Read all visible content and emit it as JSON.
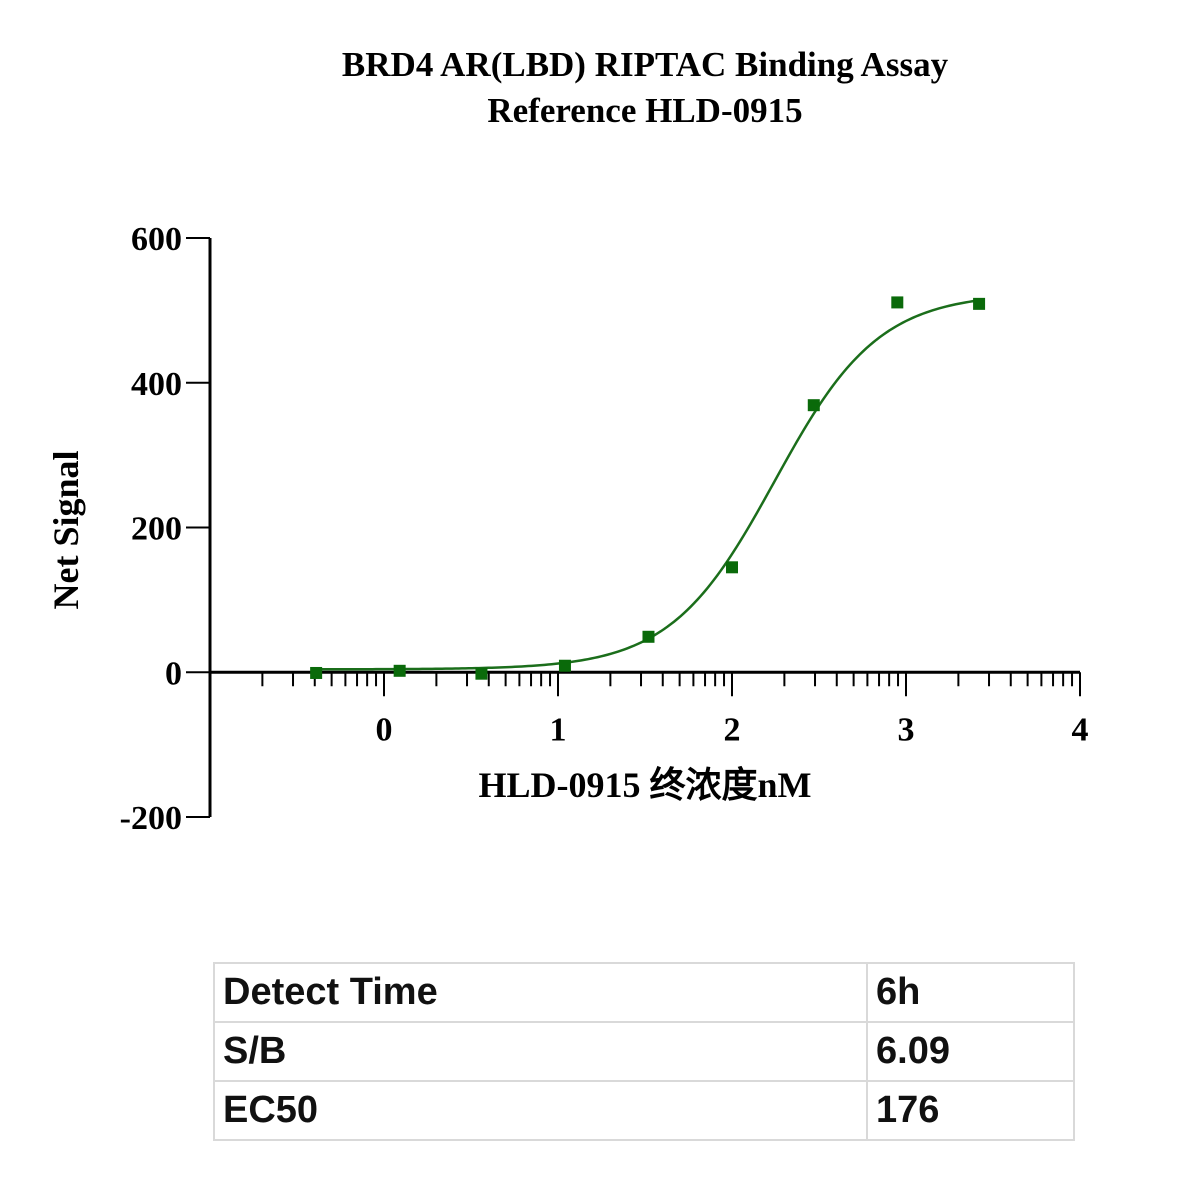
{
  "chart_data": {
    "type": "scatter",
    "title": "BRD4 AR(LBD) RIPTAC Binding Assay",
    "subtitle": "Reference HLD-0915",
    "xlabel": "HLD-0915 终浓度nM",
    "ylabel": "Net Signal",
    "xlim": [
      -1,
      4
    ],
    "ylim": [
      -200,
      600
    ],
    "xticks": [
      0,
      1,
      2,
      3,
      4
    ],
    "yticks": [
      -200,
      0,
      200,
      400,
      600
    ],
    "grid": false,
    "series": [
      {
        "color": "#0a6a0a",
        "x": [
          -0.39,
          0.09,
          0.56,
          1.04,
          1.52,
          2.0,
          2.47,
          2.95,
          3.42
        ],
        "y": [
          -1,
          2,
          -2,
          9,
          49,
          145,
          369,
          511,
          509
        ]
      }
    ],
    "fit": {
      "bottom": 4,
      "top": 524,
      "logEC50": 2.245,
      "hill": 1.45,
      "color": "#1b6e1b"
    }
  },
  "table": {
    "rows": [
      {
        "label": "Detect Time",
        "value": "6h"
      },
      {
        "label": "S/B",
        "value": "6.09"
      },
      {
        "label": "EC50",
        "value": "176"
      }
    ]
  }
}
